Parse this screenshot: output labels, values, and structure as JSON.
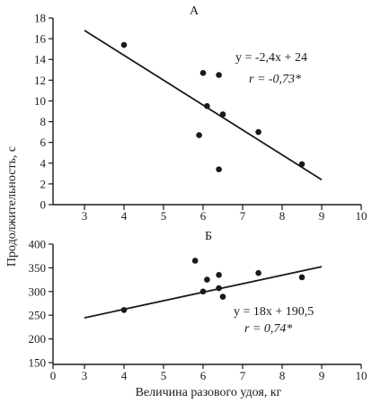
{
  "y_axis_label": "Продолжительность, с",
  "x_axis_label": "Величина разового удоя, кг",
  "chart_data": [
    {
      "type": "scatter",
      "title": "А",
      "x": [
        4.0,
        6.0,
        6.1,
        6.4,
        6.5,
        5.9,
        6.4,
        7.4,
        8.5
      ],
      "y": [
        15.4,
        12.7,
        9.5,
        12.5,
        8.7,
        6.7,
        3.4,
        7.0,
        3.9
      ],
      "fit_line": {
        "x": [
          3,
          9
        ],
        "y": [
          16.8,
          2.4
        ]
      },
      "equation": "y = -2,4x + 24",
      "r_text": "r = -0,73*",
      "xlim": [
        2,
        10
      ],
      "ylim": [
        0,
        18
      ],
      "xticks": [
        "3",
        "4",
        "5",
        "6",
        "7",
        "8",
        "9",
        "10"
      ],
      "yticks": [
        "0",
        "2",
        "4",
        "6",
        "8",
        "10",
        "12",
        "14",
        "16",
        "18"
      ],
      "grid": false
    },
    {
      "type": "scatter",
      "title": "Б",
      "x": [
        4.0,
        5.8,
        6.0,
        6.1,
        6.4,
        6.4,
        6.5,
        7.4,
        8.5
      ],
      "y": [
        261,
        365,
        300,
        325,
        307,
        335,
        289,
        339,
        330
      ],
      "fit_line": {
        "x": [
          3,
          9
        ],
        "y": [
          244.5,
          352.5
        ]
      },
      "equation": "y = 18x + 190,5",
      "r_text": "r = 0,74*",
      "xlim": [
        0,
        10
      ],
      "ylim": [
        150,
        400
      ],
      "xticks": [
        "0",
        "3",
        "4",
        "5",
        "6",
        "7",
        "8",
        "9",
        "10"
      ],
      "yticks": [
        "150",
        "200",
        "250",
        "300",
        "350",
        "400"
      ],
      "grid": false
    }
  ]
}
